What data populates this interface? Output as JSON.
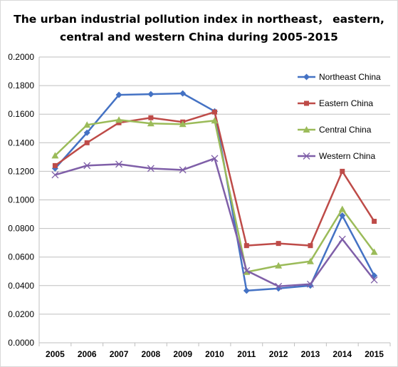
{
  "chart_data": {
    "type": "line",
    "title_lines": [
      "The urban industrial pollution index in northeast， eastern,",
      "central and western China during 2005-2015"
    ],
    "xlabel": "",
    "ylabel": "",
    "x": [
      "2005",
      "2006",
      "2007",
      "2008",
      "2009",
      "2010",
      "2011",
      "2012",
      "2013",
      "2014",
      "2015"
    ],
    "ylim": [
      0,
      0.2
    ],
    "yticks": [
      "0.0000",
      "0.0200",
      "0.0400",
      "0.0600",
      "0.0800",
      "0.1000",
      "0.1200",
      "0.1400",
      "0.1600",
      "0.1800",
      "0.2000"
    ],
    "grid": true,
    "legend_position": "top-right",
    "series": [
      {
        "name": "Northeast China",
        "color": "#4472c4",
        "marker": "diamond",
        "values": [
          0.122,
          0.147,
          0.1735,
          0.174,
          0.1745,
          0.162,
          0.0365,
          0.038,
          0.04,
          0.089,
          0.047
        ]
      },
      {
        "name": "Eastern China",
        "color": "#be4b48",
        "marker": "square",
        "values": [
          0.124,
          0.14,
          0.154,
          0.1575,
          0.1545,
          0.1615,
          0.068,
          0.0695,
          0.068,
          0.12,
          0.085
        ]
      },
      {
        "name": "Central China",
        "color": "#9bbb59",
        "marker": "triangle",
        "values": [
          0.131,
          0.1525,
          0.156,
          0.1535,
          0.153,
          0.1555,
          0.0495,
          0.054,
          0.057,
          0.0935,
          0.0635
        ]
      },
      {
        "name": "Western China",
        "color": "#7f5fa8",
        "marker": "x",
        "values": [
          0.1175,
          0.124,
          0.125,
          0.122,
          0.121,
          0.129,
          0.0505,
          0.0395,
          0.041,
          0.0725,
          0.044
        ]
      }
    ]
  }
}
